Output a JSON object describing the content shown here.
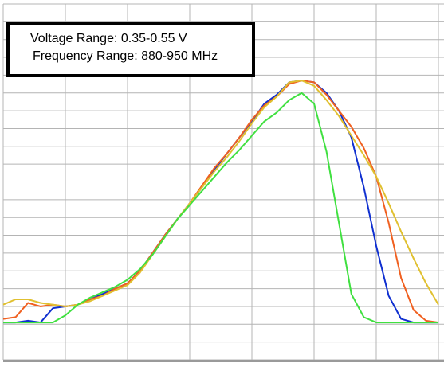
{
  "chart_data": {
    "type": "line",
    "annotations": [
      "Voltage Range: 0.35-0.55 V",
      "Frequency Range: 880-950 MHz"
    ],
    "x": [
      0,
      0.2,
      0.4,
      0.6,
      0.8,
      1.0,
      1.2,
      1.4,
      1.6,
      1.8,
      2.0,
      2.2,
      2.4,
      2.6,
      2.8,
      3.0,
      3.2,
      3.4,
      3.6,
      3.8,
      4.0,
      4.2,
      4.4,
      4.6,
      4.8,
      5.0,
      5.2,
      5.4,
      5.6,
      5.8,
      6.0,
      6.2,
      6.4,
      6.6,
      6.8,
      7.0
    ],
    "series": [
      {
        "color": "#1030d0",
        "values": [
          2.1,
          2.1,
          2.2,
          2.1,
          2.9,
          3.0,
          3.1,
          3.4,
          3.7,
          4.0,
          4.3,
          5.0,
          6.0,
          7.0,
          7.9,
          8.8,
          9.7,
          10.7,
          11.6,
          12.5,
          13.4,
          14.4,
          14.9,
          15.6,
          15.7,
          15.6,
          15.0,
          14.0,
          12.5,
          9.7,
          6.4,
          3.6,
          2.3,
          2.1,
          2.1,
          2.1
        ]
      },
      {
        "color": "#f06020",
        "values": [
          2.3,
          2.4,
          3.2,
          3.0,
          3.1,
          3.0,
          3.1,
          3.4,
          3.6,
          4.0,
          4.3,
          5.0,
          6.0,
          7.0,
          7.9,
          8.8,
          9.8,
          10.8,
          11.6,
          12.5,
          13.5,
          14.3,
          14.8,
          15.5,
          15.7,
          15.6,
          14.9,
          14.0,
          13.1,
          11.9,
          10.3,
          7.7,
          4.6,
          2.8,
          2.2,
          2.1
        ]
      },
      {
        "color": "#e0c030",
        "values": [
          3.1,
          3.4,
          3.4,
          3.2,
          3.1,
          3.0,
          3.1,
          3.3,
          3.6,
          3.9,
          4.2,
          4.9,
          5.9,
          6.9,
          7.9,
          8.8,
          9.7,
          10.6,
          11.4,
          12.3,
          13.3,
          14.2,
          14.8,
          15.6,
          15.7,
          15.4,
          14.6,
          13.7,
          12.6,
          11.5,
          10.3,
          8.8,
          7.2,
          5.7,
          4.3,
          3.1
        ]
      },
      {
        "color": "#40e040",
        "values": [
          2.1,
          2.1,
          2.1,
          2.1,
          2.1,
          2.5,
          3.1,
          3.5,
          3.8,
          4.1,
          4.5,
          5.1,
          5.9,
          6.9,
          7.9,
          8.7,
          9.5,
          10.3,
          11.1,
          11.8,
          12.6,
          13.4,
          13.9,
          14.6,
          15.0,
          14.4,
          11.7,
          7.7,
          3.7,
          2.4,
          2.1,
          2.1,
          2.1,
          2.1,
          2.1,
          2.1
        ]
      }
    ],
    "xlim": [
      0,
      7
    ],
    "ylim": [
      0,
      20
    ],
    "xticks": [
      0,
      1,
      2,
      3,
      4,
      5,
      6,
      7
    ],
    "yticks": [
      0,
      1,
      2,
      3,
      4,
      5,
      6,
      7,
      8,
      9,
      10,
      11,
      12,
      13,
      14,
      15,
      16,
      17,
      18,
      19,
      20
    ],
    "grid": true
  }
}
